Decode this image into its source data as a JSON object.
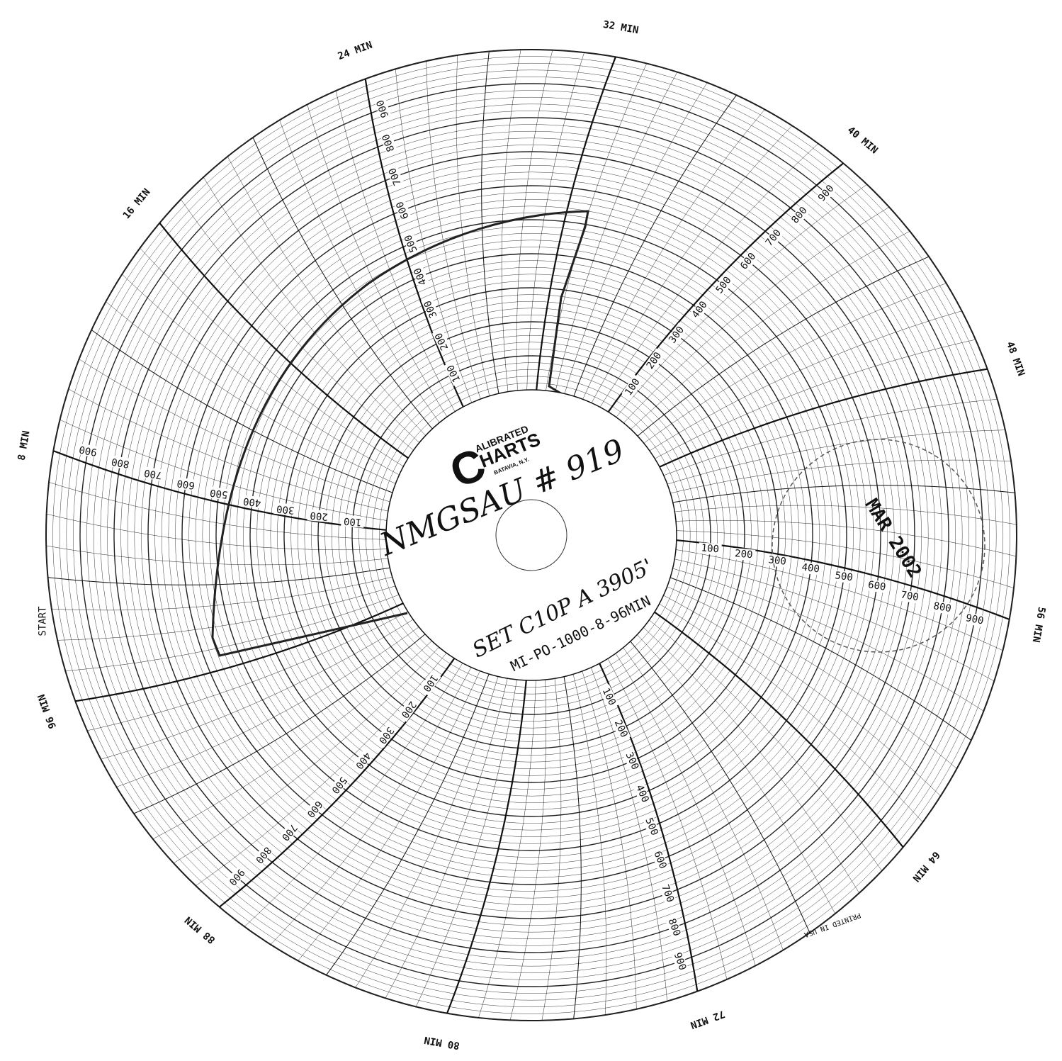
{
  "brand": {
    "initial": "C",
    "line1": "ALIBRATED",
    "line2": "HARTS",
    "line3": "BATAVIA, N.Y."
  },
  "start_label": "START",
  "time_labels": [
    "8 MIN",
    "16 MIN",
    "24 MIN",
    "32 MIN",
    "40 MIN",
    "48 MIN",
    "56 MIN",
    "64 MIN",
    "72 MIN",
    "80 MIN",
    "88 MIN",
    "96 MIN"
  ],
  "scale_labels": [
    "100",
    "200",
    "300",
    "400",
    "500",
    "600",
    "700",
    "800",
    "900"
  ],
  "handwriting": {
    "chart_id": "NMGSAU # 919",
    "note": "SET C10P A 3905'"
  },
  "chart_code": "MI-PO-1000-8-96MIN",
  "printed": "PRINTED IN USA",
  "stamp": "MAR 2002"
}
